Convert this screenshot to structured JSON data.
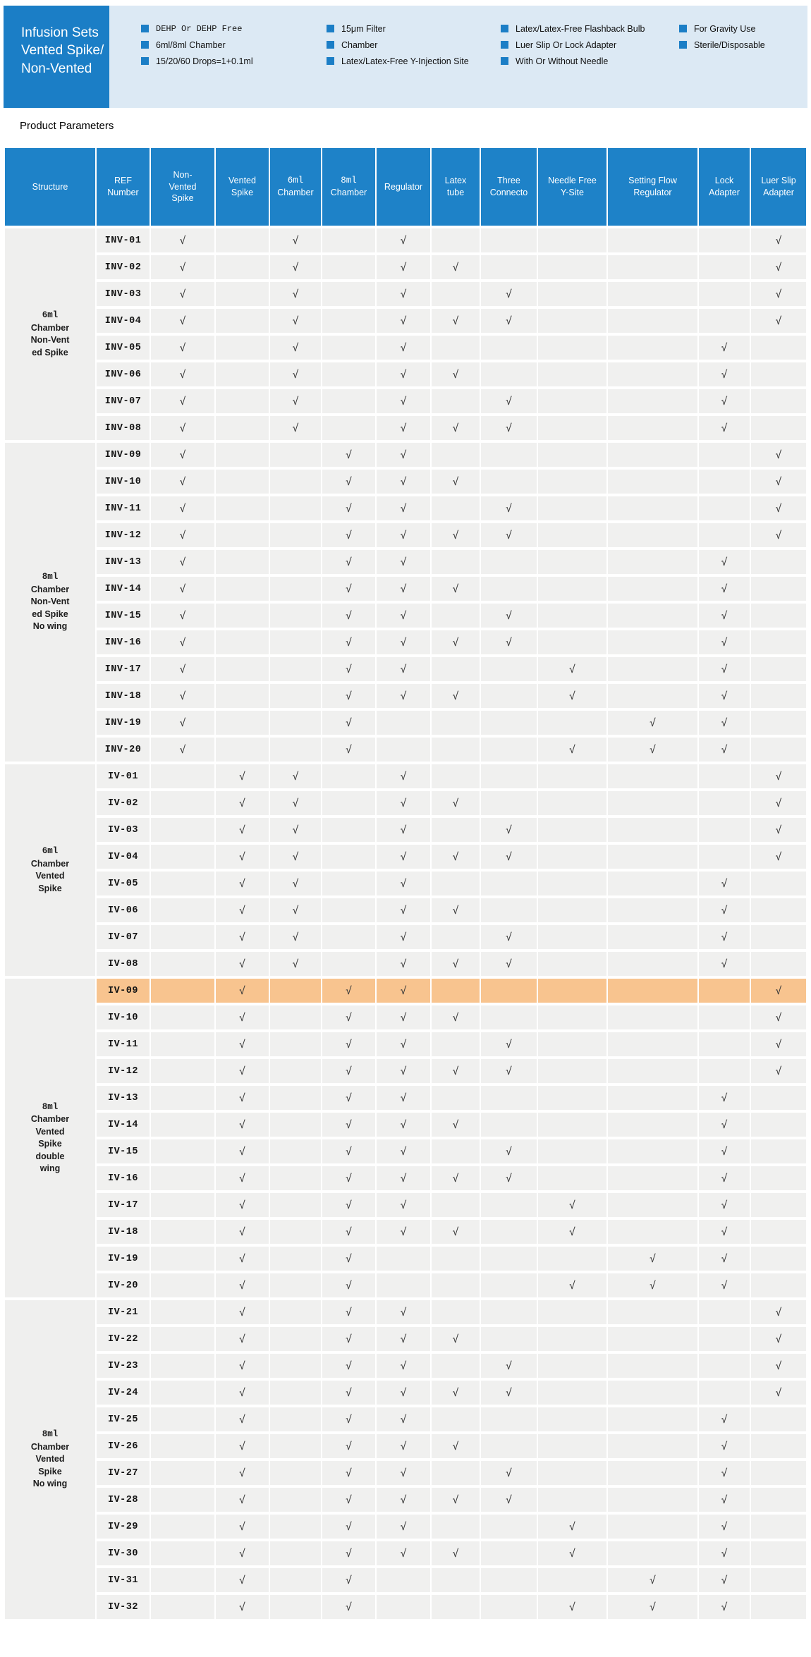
{
  "banner": {
    "title": "Infusion Sets\n Vented Spike/\nNon-Vented",
    "feature_columns": [
      {
        "items": [
          "DEHP Or DEHP Free",
          "6ml/8ml Chamber",
          "15/20/60 Drops=1+0.1ml"
        ]
      },
      {
        "items": [
          "15μm Filter",
          "Chamber",
          "Latex/Latex-Free Y-Injection Site"
        ]
      },
      {
        "items": [
          "Latex/Latex-Free Flashback Bulb",
          "Luer Slip Or Lock Adapter",
          "With Or Without Needle"
        ]
      },
      {
        "items": [
          "For Gravity Use",
          "Sterile/Disposable"
        ]
      }
    ]
  },
  "section_title": "Product Parameters",
  "check_glyph": "√",
  "colors": {
    "accent_blue": "#1b7ec6",
    "table_header_blue": "#1e82c8",
    "panel_light_blue": "#dce9f4",
    "row_gray": "#f0f0ef",
    "highlight_orange": "#f8c48f"
  },
  "table": {
    "columns": [
      "Structure",
      "REF\nNumber",
      "Non-\nVented\nSpike",
      "Vented\nSpike",
      "6ml\nChamber",
      "8ml\nChamber",
      "Regulator",
      "Latex\ntube",
      "Three\nConnecto",
      "Needle Free\nY-Site",
      "Setting Flow\nRegulator",
      "Lock\nAdapter",
      "Luer Slip\nAdapter"
    ],
    "check_columns": [
      "Non-Vented Spike",
      "Vented Spike",
      "6ml Chamber",
      "8ml Chamber",
      "Regulator",
      "Latex tube",
      "Three Connecto",
      "Needle Free Y-Site",
      "Setting Flow Regulator",
      "Lock Adapter",
      "Luer Slip Adapter"
    ],
    "groups": [
      {
        "structure": "6ml\nChamber\nNon-Vent\ned Spike",
        "rows": [
          {
            "ref": "INV-01",
            "checks": [
              1,
              0,
              1,
              0,
              1,
              0,
              0,
              0,
              0,
              0,
              1
            ]
          },
          {
            "ref": "INV-02",
            "checks": [
              1,
              0,
              1,
              0,
              1,
              1,
              0,
              0,
              0,
              0,
              1
            ]
          },
          {
            "ref": "INV-03",
            "checks": [
              1,
              0,
              1,
              0,
              1,
              0,
              1,
              0,
              0,
              0,
              1
            ]
          },
          {
            "ref": "INV-04",
            "checks": [
              1,
              0,
              1,
              0,
              1,
              1,
              1,
              0,
              0,
              0,
              1
            ]
          },
          {
            "ref": "INV-05",
            "checks": [
              1,
              0,
              1,
              0,
              1,
              0,
              0,
              0,
              0,
              1,
              0
            ]
          },
          {
            "ref": "INV-06",
            "checks": [
              1,
              0,
              1,
              0,
              1,
              1,
              0,
              0,
              0,
              1,
              0
            ]
          },
          {
            "ref": "INV-07",
            "checks": [
              1,
              0,
              1,
              0,
              1,
              0,
              1,
              0,
              0,
              1,
              0
            ]
          },
          {
            "ref": "INV-08",
            "checks": [
              1,
              0,
              1,
              0,
              1,
              1,
              1,
              0,
              0,
              1,
              0
            ]
          }
        ]
      },
      {
        "structure": "8ml\nChamber\nNon-Vent\ned Spike\nNo wing",
        "rows": [
          {
            "ref": "INV-09",
            "checks": [
              1,
              0,
              0,
              1,
              1,
              0,
              0,
              0,
              0,
              0,
              1
            ]
          },
          {
            "ref": "INV-10",
            "checks": [
              1,
              0,
              0,
              1,
              1,
              1,
              0,
              0,
              0,
              0,
              1
            ]
          },
          {
            "ref": "INV-11",
            "checks": [
              1,
              0,
              0,
              1,
              1,
              0,
              1,
              0,
              0,
              0,
              1
            ]
          },
          {
            "ref": "INV-12",
            "checks": [
              1,
              0,
              0,
              1,
              1,
              1,
              1,
              0,
              0,
              0,
              1
            ]
          },
          {
            "ref": "INV-13",
            "checks": [
              1,
              0,
              0,
              1,
              1,
              0,
              0,
              0,
              0,
              1,
              0
            ]
          },
          {
            "ref": "INV-14",
            "checks": [
              1,
              0,
              0,
              1,
              1,
              1,
              0,
              0,
              0,
              1,
              0
            ]
          },
          {
            "ref": "INV-15",
            "checks": [
              1,
              0,
              0,
              1,
              1,
              0,
              1,
              0,
              0,
              1,
              0
            ]
          },
          {
            "ref": "INV-16",
            "checks": [
              1,
              0,
              0,
              1,
              1,
              1,
              1,
              0,
              0,
              1,
              0
            ]
          },
          {
            "ref": "INV-17",
            "checks": [
              1,
              0,
              0,
              1,
              1,
              0,
              0,
              1,
              0,
              1,
              0
            ]
          },
          {
            "ref": "INV-18",
            "checks": [
              1,
              0,
              0,
              1,
              1,
              1,
              0,
              1,
              0,
              1,
              0
            ]
          },
          {
            "ref": "INV-19",
            "checks": [
              1,
              0,
              0,
              1,
              0,
              0,
              0,
              0,
              1,
              1,
              0
            ]
          },
          {
            "ref": "INV-20",
            "checks": [
              1,
              0,
              0,
              1,
              0,
              0,
              0,
              1,
              1,
              1,
              0
            ]
          }
        ]
      },
      {
        "structure": "6ml\nChamber\nVented\nSpike",
        "rows": [
          {
            "ref": "IV-01",
            "checks": [
              0,
              1,
              1,
              0,
              1,
              0,
              0,
              0,
              0,
              0,
              1
            ]
          },
          {
            "ref": "IV-02",
            "checks": [
              0,
              1,
              1,
              0,
              1,
              1,
              0,
              0,
              0,
              0,
              1
            ]
          },
          {
            "ref": "IV-03",
            "checks": [
              0,
              1,
              1,
              0,
              1,
              0,
              1,
              0,
              0,
              0,
              1
            ]
          },
          {
            "ref": "IV-04",
            "checks": [
              0,
              1,
              1,
              0,
              1,
              1,
              1,
              0,
              0,
              0,
              1
            ]
          },
          {
            "ref": "IV-05",
            "checks": [
              0,
              1,
              1,
              0,
              1,
              0,
              0,
              0,
              0,
              1,
              0
            ]
          },
          {
            "ref": "IV-06",
            "checks": [
              0,
              1,
              1,
              0,
              1,
              1,
              0,
              0,
              0,
              1,
              0
            ]
          },
          {
            "ref": "IV-07",
            "checks": [
              0,
              1,
              1,
              0,
              1,
              0,
              1,
              0,
              0,
              1,
              0
            ]
          },
          {
            "ref": "IV-08",
            "checks": [
              0,
              1,
              1,
              0,
              1,
              1,
              1,
              0,
              0,
              1,
              0
            ]
          }
        ]
      },
      {
        "structure": "8ml\nChamber\nVented\nSpike\ndouble\nwing",
        "rows": [
          {
            "ref": "IV-09",
            "checks": [
              0,
              1,
              0,
              1,
              1,
              0,
              0,
              0,
              0,
              0,
              1
            ],
            "highlight": true
          },
          {
            "ref": "IV-10",
            "checks": [
              0,
              1,
              0,
              1,
              1,
              1,
              0,
              0,
              0,
              0,
              1
            ]
          },
          {
            "ref": "IV-11",
            "checks": [
              0,
              1,
              0,
              1,
              1,
              0,
              1,
              0,
              0,
              0,
              1
            ]
          },
          {
            "ref": "IV-12",
            "checks": [
              0,
              1,
              0,
              1,
              1,
              1,
              1,
              0,
              0,
              0,
              1
            ]
          },
          {
            "ref": "IV-13",
            "checks": [
              0,
              1,
              0,
              1,
              1,
              0,
              0,
              0,
              0,
              1,
              0
            ]
          },
          {
            "ref": "IV-14",
            "checks": [
              0,
              1,
              0,
              1,
              1,
              1,
              0,
              0,
              0,
              1,
              0
            ]
          },
          {
            "ref": "IV-15",
            "checks": [
              0,
              1,
              0,
              1,
              1,
              0,
              1,
              0,
              0,
              1,
              0
            ]
          },
          {
            "ref": "IV-16",
            "checks": [
              0,
              1,
              0,
              1,
              1,
              1,
              1,
              0,
              0,
              1,
              0
            ]
          },
          {
            "ref": "IV-17",
            "checks": [
              0,
              1,
              0,
              1,
              1,
              0,
              0,
              1,
              0,
              1,
              0
            ]
          },
          {
            "ref": "IV-18",
            "checks": [
              0,
              1,
              0,
              1,
              1,
              1,
              0,
              1,
              0,
              1,
              0
            ]
          },
          {
            "ref": "IV-19",
            "checks": [
              0,
              1,
              0,
              1,
              0,
              0,
              0,
              0,
              1,
              1,
              0
            ]
          },
          {
            "ref": "IV-20",
            "checks": [
              0,
              1,
              0,
              1,
              0,
              0,
              0,
              1,
              1,
              1,
              0
            ]
          }
        ]
      },
      {
        "structure": "8ml\nChamber\nVented\nSpike\nNo wing",
        "rows": [
          {
            "ref": "IV-21",
            "checks": [
              0,
              1,
              0,
              1,
              1,
              0,
              0,
              0,
              0,
              0,
              1
            ]
          },
          {
            "ref": "IV-22",
            "checks": [
              0,
              1,
              0,
              1,
              1,
              1,
              0,
              0,
              0,
              0,
              1
            ]
          },
          {
            "ref": "IV-23",
            "checks": [
              0,
              1,
              0,
              1,
              1,
              0,
              1,
              0,
              0,
              0,
              1
            ]
          },
          {
            "ref": "IV-24",
            "checks": [
              0,
              1,
              0,
              1,
              1,
              1,
              1,
              0,
              0,
              0,
              1
            ]
          },
          {
            "ref": "IV-25",
            "checks": [
              0,
              1,
              0,
              1,
              1,
              0,
              0,
              0,
              0,
              1,
              0
            ]
          },
          {
            "ref": "IV-26",
            "checks": [
              0,
              1,
              0,
              1,
              1,
              1,
              0,
              0,
              0,
              1,
              0
            ]
          },
          {
            "ref": "IV-27",
            "checks": [
              0,
              1,
              0,
              1,
              1,
              0,
              1,
              0,
              0,
              1,
              0
            ]
          },
          {
            "ref": "IV-28",
            "checks": [
              0,
              1,
              0,
              1,
              1,
              1,
              1,
              0,
              0,
              1,
              0
            ]
          },
          {
            "ref": "IV-29",
            "checks": [
              0,
              1,
              0,
              1,
              1,
              0,
              0,
              1,
              0,
              1,
              0
            ]
          },
          {
            "ref": "IV-30",
            "checks": [
              0,
              1,
              0,
              1,
              1,
              1,
              0,
              1,
              0,
              1,
              0
            ]
          },
          {
            "ref": "IV-31",
            "checks": [
              0,
              1,
              0,
              1,
              0,
              0,
              0,
              0,
              1,
              1,
              0
            ]
          },
          {
            "ref": "IV-32",
            "checks": [
              0,
              1,
              0,
              1,
              0,
              0,
              0,
              1,
              1,
              1,
              0
            ]
          }
        ]
      }
    ]
  }
}
